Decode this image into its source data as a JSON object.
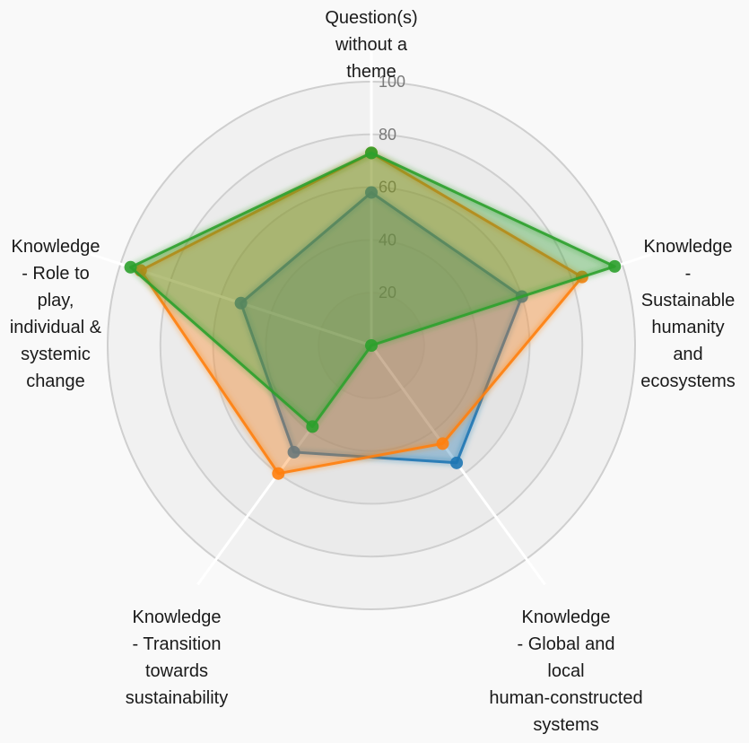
{
  "chart_data": {
    "type": "radar",
    "axes": [
      {
        "lines": [
          "Question(s)",
          "without a",
          "theme"
        ]
      },
      {
        "lines": [
          "Knowledge",
          "-",
          "Sustainable",
          "humanity",
          "and",
          "ecosystems"
        ]
      },
      {
        "lines": [
          "Knowledge",
          "- Global and",
          "local",
          "human-constructed",
          "systems"
        ]
      },
      {
        "lines": [
          "Knowledge",
          "- Transition",
          "towards",
          "sustainability"
        ]
      },
      {
        "lines": [
          "Knowledge",
          "- Role to",
          "play,",
          "individual &",
          "systemic",
          "change"
        ]
      }
    ],
    "rlim": [
      0,
      100
    ],
    "ticks": [
      20,
      40,
      60,
      80,
      100
    ],
    "grid": true,
    "legend": "none",
    "series": [
      {
        "color": "#1f77b4",
        "values": [
          58,
          60,
          55,
          50,
          52
        ]
      },
      {
        "color": "#ff7f0e",
        "values": [
          73,
          84,
          46,
          60,
          92
        ]
      },
      {
        "color": "#2ca02c",
        "values": [
          73,
          97,
          0,
          38,
          96
        ]
      }
    ]
  }
}
